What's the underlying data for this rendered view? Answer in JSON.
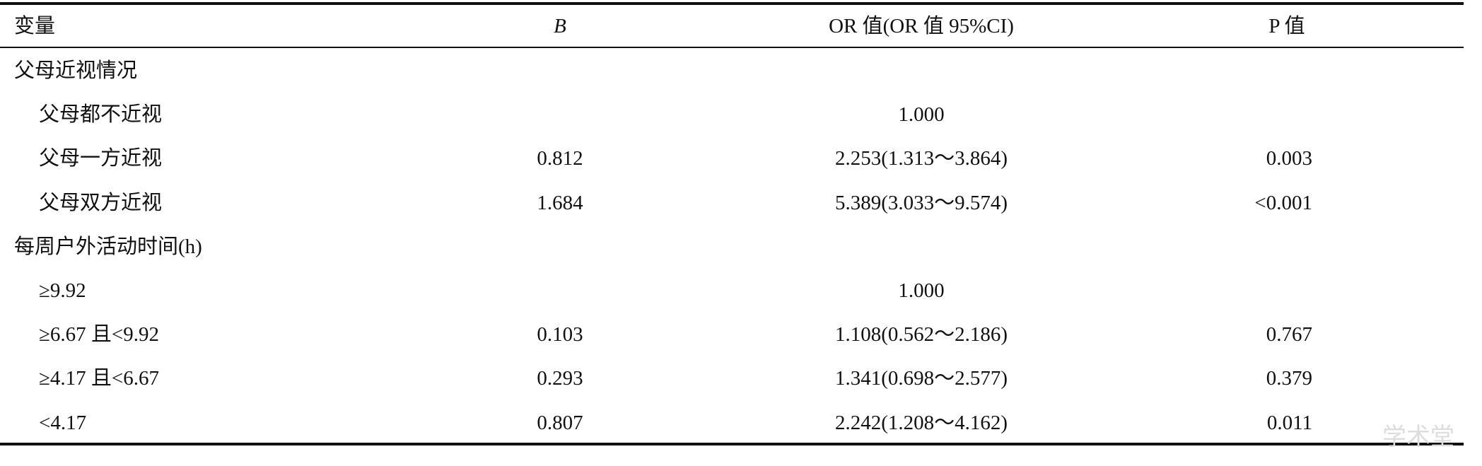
{
  "header": {
    "variable": "变量",
    "b": "B",
    "or": "OR 值(OR 值 95%CI)",
    "p": "P 值"
  },
  "groups": [
    {
      "title": "父母近视情况",
      "rows": [
        {
          "label": "父母都不近视",
          "or": "1.000"
        },
        {
          "label": "父母一方近视",
          "b": "0.812",
          "or": "2.253(1.313～3.864)",
          "p": "0.003"
        },
        {
          "label": "父母双方近视",
          "b": "1.684",
          "or": "5.389(3.033～9.574)",
          "p": "<0.001"
        }
      ]
    },
    {
      "title": "每周户外活动时间(h)",
      "rows": [
        {
          "label": "≥9.92",
          "or": "1.000"
        },
        {
          "label": "≥6.67 且<9.92",
          "b": "0.103",
          "or": "1.108(0.562～2.186)",
          "p": "0.767"
        },
        {
          "label": "≥4.17 且<6.67",
          "b": "0.293",
          "or": "1.341(0.698～2.577)",
          "p": "0.379"
        },
        {
          "label": "<4.17",
          "b": "0.807",
          "or": "2.242(1.208～4.162)",
          "p": "0.011"
        }
      ]
    }
  ],
  "watermark": "学术堂"
}
